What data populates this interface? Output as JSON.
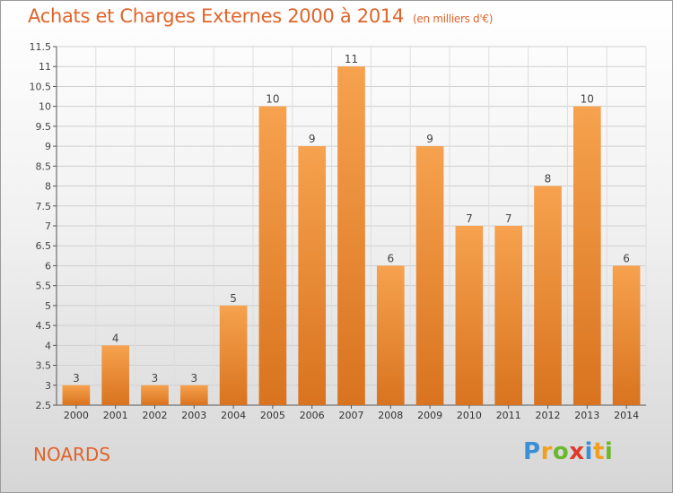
{
  "title": "Achats et Charges Externes 2000 à 2014",
  "subtitle": "(en milliers d'€)",
  "commune": "NOARDS",
  "logo": {
    "letters": [
      "P",
      "r",
      "o",
      "x",
      "i",
      "t",
      "i"
    ],
    "colors": [
      "#3b8fd6",
      "#f0a020",
      "#6ab82c",
      "#e03a2a",
      "#3b8fd6",
      "#f0a020",
      "#6ab82c"
    ]
  },
  "colors": {
    "bar_light": "#f6a24e",
    "bar_dark": "#d9731f",
    "title": "#e0642a"
  },
  "chart_data": {
    "type": "bar",
    "categories": [
      "2000",
      "2001",
      "2002",
      "2003",
      "2004",
      "2005",
      "2006",
      "2007",
      "2008",
      "2009",
      "2010",
      "2011",
      "2012",
      "2013",
      "2014"
    ],
    "values": [
      3,
      4,
      3,
      3,
      5,
      10,
      9,
      11,
      6,
      9,
      7,
      7,
      8,
      10,
      6
    ],
    "data_labels": [
      "3",
      "4",
      "3",
      "3",
      "5",
      "10",
      "9",
      "11",
      "6",
      "9",
      "7",
      "7",
      "8",
      "10",
      "6"
    ],
    "ylim": [
      2.5,
      11.5
    ],
    "yticks": [
      2.5,
      3,
      3.5,
      4,
      4.5,
      5,
      5.5,
      6,
      6.5,
      7,
      7.5,
      8,
      8.5,
      9,
      9.5,
      10,
      10.5,
      11,
      11.5
    ],
    "ytick_labels": [
      "2.5",
      "3",
      "3.5",
      "4",
      "4.5",
      "5",
      "5.5",
      "6",
      "6.5",
      "7",
      "7.5",
      "8",
      "8.5",
      "9",
      "9.5",
      "10",
      "10.5",
      "11",
      "11.5"
    ],
    "grid": true,
    "xlabel": "",
    "ylabel": ""
  }
}
